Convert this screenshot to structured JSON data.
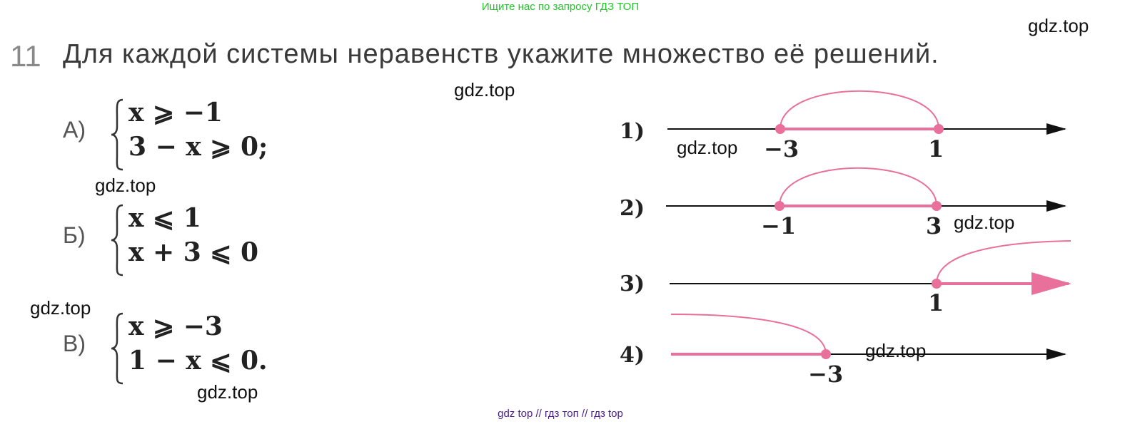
{
  "header_note": "Ищите нас по запросу ГДЗ ТОП",
  "footer_note": "gdz top  //  гдз топ  //  гдз top",
  "task": {
    "number": "11",
    "title": "Для каждой системы неравенств укажите множество её решений."
  },
  "systems": [
    {
      "label": "А)",
      "lines": [
        "x ⩾ −1",
        "3 − x ⩾ 0;"
      ]
    },
    {
      "label": "Б)",
      "lines": [
        "x ⩽ 1",
        "x + 3 ⩽ 0"
      ]
    },
    {
      "label": "В)",
      "lines": [
        "x ⩾ −3",
        "1 − x ⩽ 0."
      ]
    }
  ],
  "number_lines": [
    {
      "label": "1)",
      "ticks": [
        "−3",
        "1"
      ]
    },
    {
      "label": "2)",
      "ticks": [
        "−1",
        "3"
      ]
    },
    {
      "label": "3)",
      "ticks": [
        "1"
      ]
    },
    {
      "label": "4)",
      "ticks": [
        "−3"
      ]
    }
  ],
  "watermark": "gdz.top",
  "colors": {
    "accent_pink": "#e8709a",
    "header_green": "#22c42a",
    "footer_purple": "#4a1c8c"
  }
}
